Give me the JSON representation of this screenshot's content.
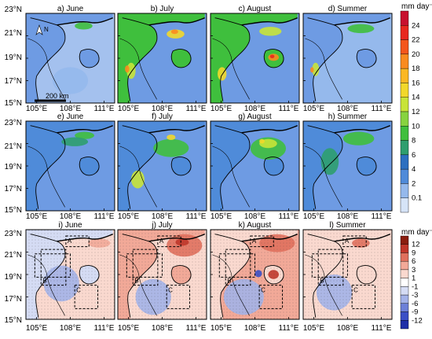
{
  "rows": [
    {
      "panels": [
        {
          "label": "a) June",
          "pattern": "june"
        },
        {
          "label": "b) July",
          "pattern": "july"
        },
        {
          "label": "c) August",
          "pattern": "august"
        },
        {
          "label": "d) Summer",
          "pattern": "summer"
        }
      ]
    },
    {
      "panels": [
        {
          "label": "e) June",
          "pattern": "june"
        },
        {
          "label": "f) July",
          "pattern": "july"
        },
        {
          "label": "g) August",
          "pattern": "august"
        },
        {
          "label": "h) Summer",
          "pattern": "summer"
        }
      ]
    },
    {
      "panels": [
        {
          "label": "i) June",
          "pattern": "june"
        },
        {
          "label": "j) July",
          "pattern": "july"
        },
        {
          "label": "k) August",
          "pattern": "august"
        },
        {
          "label": "l) Summer",
          "pattern": "summer"
        }
      ]
    }
  ],
  "lat_ticks": [
    "23°N",
    "21°N",
    "19°N",
    "17°N",
    "15°N"
  ],
  "lon_ticks": [
    "105°E",
    "108°E",
    "111°E"
  ],
  "scale_bar": "200 km",
  "north_arrow": "N",
  "box_labels": [
    "A",
    "B",
    "C"
  ],
  "colorbar_precip": {
    "unit": "mm day⁻¹",
    "levels": [
      "24",
      "22",
      "20",
      "18",
      "16",
      "14",
      "12",
      "10",
      "8",
      "6",
      "4",
      "2",
      "0.1"
    ],
    "colors": [
      "#c8102e",
      "#e8281f",
      "#f4561c",
      "#f98b1f",
      "#fbb823",
      "#f2d82a",
      "#c8e438",
      "#87d33f",
      "#3fbf3d",
      "#2e9e6e",
      "#2c6fc0",
      "#4f8bd9",
      "#95b9ec",
      "#d6e4f7"
    ]
  },
  "colorbar_diff": {
    "unit": "mm day⁻¹",
    "levels": [
      "12",
      "9",
      "6",
      "3",
      "1",
      "-1",
      "-3",
      "-6",
      "-9",
      "-12"
    ],
    "colors": [
      "#8a1d0e",
      "#c0362a",
      "#e0705d",
      "#f2a998",
      "#fad9cf",
      "#ffffff",
      "#d5dcf4",
      "#a3b2e8",
      "#6c80d8",
      "#3a4fc6",
      "#1f2fa8"
    ]
  }
}
